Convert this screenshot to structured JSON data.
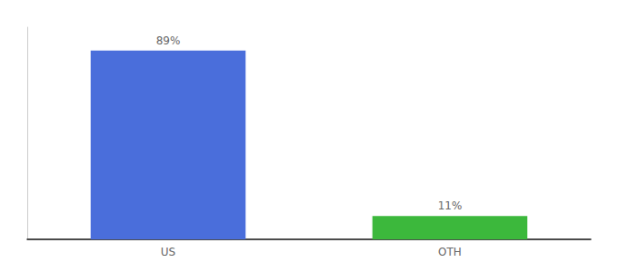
{
  "chart_data": {
    "type": "bar",
    "categories": [
      "US",
      "OTH"
    ],
    "values": [
      89,
      11
    ],
    "colors": [
      "#4a6edb",
      "#3cb83c"
    ],
    "value_labels": [
      "89%",
      "11%"
    ],
    "data_labels": true,
    "ylim": [
      0,
      100
    ],
    "tick_labels": "x",
    "grid": false
  }
}
